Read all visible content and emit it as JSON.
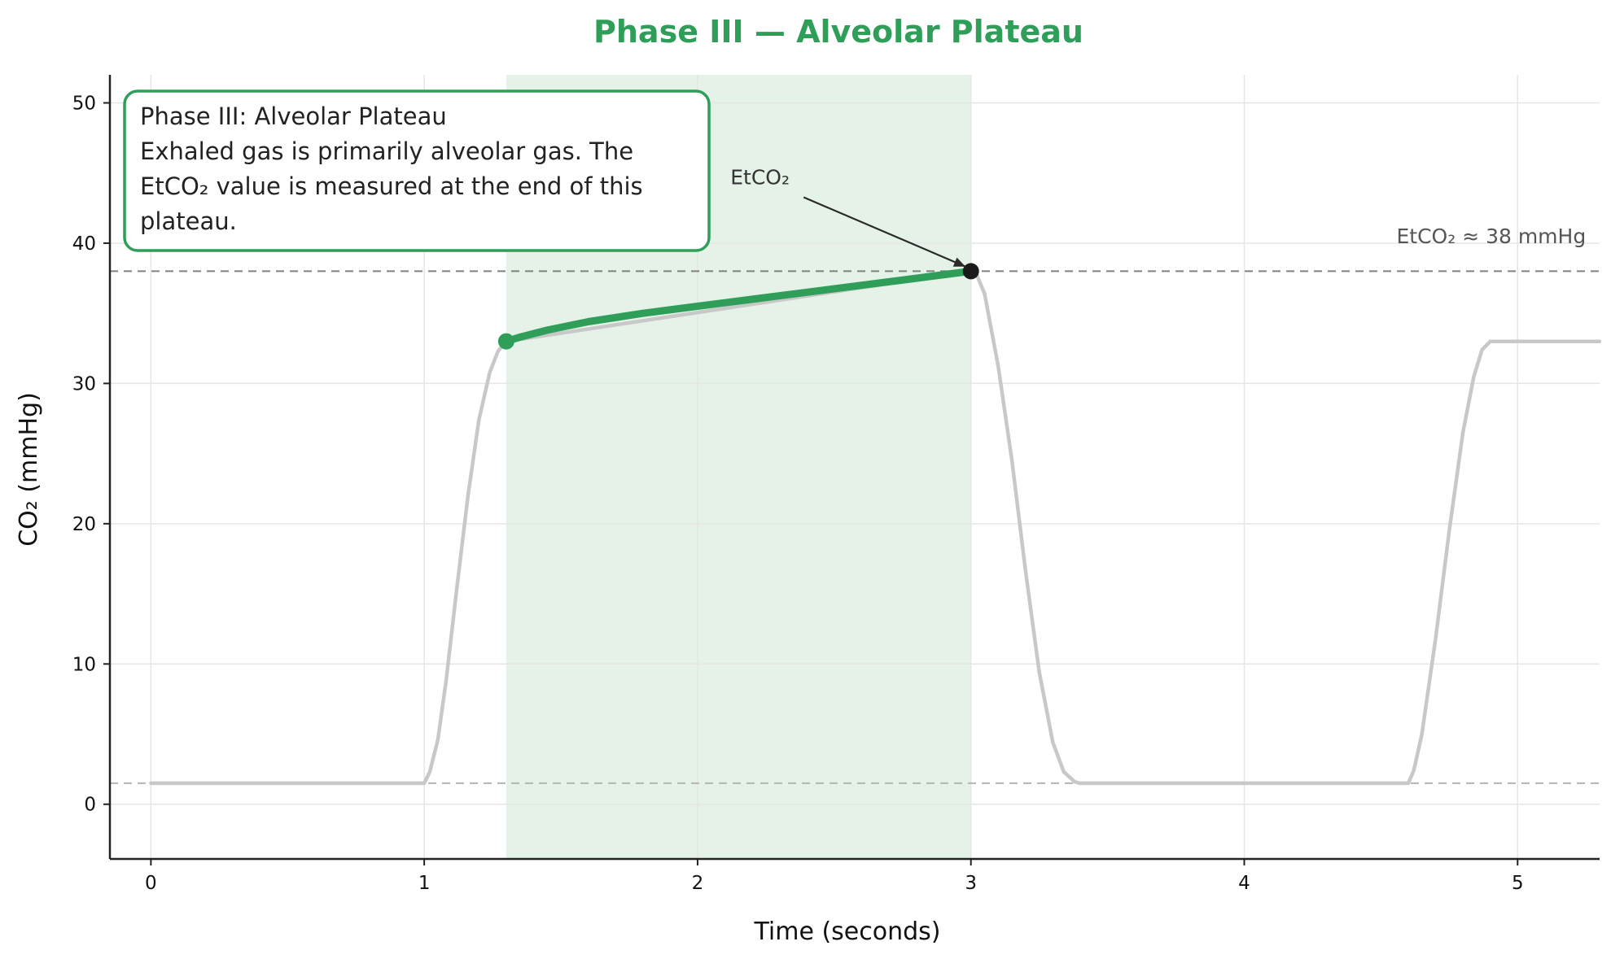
{
  "chart_data": {
    "type": "line",
    "title": "Phase III — Alveolar Plateau",
    "xlabel": "Time (seconds)",
    "ylabel": "CO₂ (mmHg)",
    "xlim": [
      -0.15,
      5.3
    ],
    "ylim": [
      -3.9,
      52
    ],
    "xticks": [
      0,
      1,
      2,
      3,
      4,
      5
    ],
    "yticks": [
      0,
      10,
      20,
      30,
      40,
      50
    ],
    "grid": true,
    "colors": {
      "accent": "#2e9e58",
      "shade": "#e4f2e8",
      "background_trace": "#c8c8c8",
      "reference_line": "#808080",
      "baseline_line": "#b4b4b4",
      "marker_dark": "#1a1a1a",
      "axis": "#222222",
      "grid": "#e6e6e6"
    },
    "series": [
      {
        "role": "background",
        "x": [
          0,
          1.0,
          1.02,
          1.05,
          1.08,
          1.12,
          1.16,
          1.2,
          1.24,
          1.27,
          1.3,
          3.0,
          3.02,
          3.05,
          3.1,
          3.15,
          3.2,
          3.25,
          3.3,
          3.34,
          3.38,
          3.4,
          4.6,
          4.62,
          4.65,
          4.7,
          4.75,
          4.8,
          4.84,
          4.87,
          4.9,
          5.3
        ],
        "y": [
          1.5,
          1.5,
          2.3,
          4.6,
          8.8,
          15.5,
          22.0,
          27.4,
          30.8,
          32.3,
          33.0,
          38.0,
          37.8,
          36.4,
          31.2,
          24.5,
          16.6,
          9.4,
          4.4,
          2.3,
          1.6,
          1.5,
          1.5,
          2.4,
          5.0,
          11.8,
          19.5,
          26.5,
          30.5,
          32.4,
          33.0,
          33.0
        ]
      },
      {
        "role": "phase-iii-highlight",
        "x": [
          1.3,
          1.35,
          1.45,
          1.6,
          1.8,
          2.0,
          2.2,
          2.4,
          2.6,
          2.8,
          3.0
        ],
        "y": [
          33.0,
          33.3,
          33.8,
          34.4,
          35.0,
          35.5,
          36.0,
          36.5,
          37.0,
          37.5,
          38.0
        ]
      }
    ],
    "shaded_region": {
      "x0": 1.3,
      "x1": 3.0
    },
    "reference_lines": [
      {
        "y": 38,
        "style": "dashed"
      },
      {
        "y": 1.5,
        "style": "dashed"
      }
    ],
    "points": [
      {
        "x": 1.3,
        "y": 33,
        "role": "start"
      },
      {
        "x": 3.0,
        "y": 38,
        "role": "etco2"
      }
    ],
    "annotations": {
      "etco2_arrow_label": "EtCO₂",
      "etco2_value_label": "EtCO₂ ≈ 38 mmHg",
      "arrow_text_at": {
        "x": 2.12,
        "y": 44.2
      },
      "arrow_tip_at": {
        "x": 2.98,
        "y": 38.1
      },
      "value_label_at": {
        "x": 5.25,
        "y": 40.0
      }
    },
    "info_box": {
      "lines": [
        "Phase III: Alveolar Plateau",
        "Exhaled gas is primarily alveolar gas. The",
        "EtCO₂ value is measured at the end of this",
        "plateau."
      ]
    }
  }
}
